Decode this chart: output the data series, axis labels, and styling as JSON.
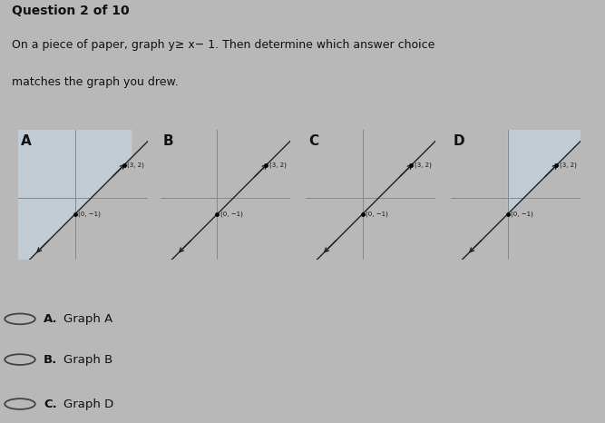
{
  "title": "Question 2 of 10",
  "problem_line1": "On a piece of paper, graph y≥ x− 1. Then determine which answer choice",
  "problem_line2": "matches the graph you drew.",
  "graph_labels": [
    "A",
    "B",
    "C",
    "D"
  ],
  "point1_label": "(0, −1)",
  "point2_label": "(3, 2)",
  "point1": [
    0,
    -1
  ],
  "point2": [
    3,
    2
  ],
  "answer_choices": [
    {
      "bullet": "A.",
      "text": "Graph A"
    },
    {
      "bullet": "B.",
      "text": "Graph B"
    },
    {
      "bullet": "C.",
      "text": "Graph D"
    }
  ],
  "bg_color": "#b8b8b8",
  "shade_color_a": "#c8d8e8",
  "shade_color_bcd": "#c8d8e8",
  "line_color": "#222222",
  "text_color": "#111111",
  "axis_color": "#888888",
  "graph_configs": [
    {
      "label": "A",
      "shade": "above_left_box",
      "dashed": false
    },
    {
      "label": "B",
      "shade": "none",
      "dashed": false
    },
    {
      "label": "C",
      "shade": "none",
      "dashed": false
    },
    {
      "label": "D",
      "shade": "above_right_box",
      "dashed": false
    }
  ]
}
